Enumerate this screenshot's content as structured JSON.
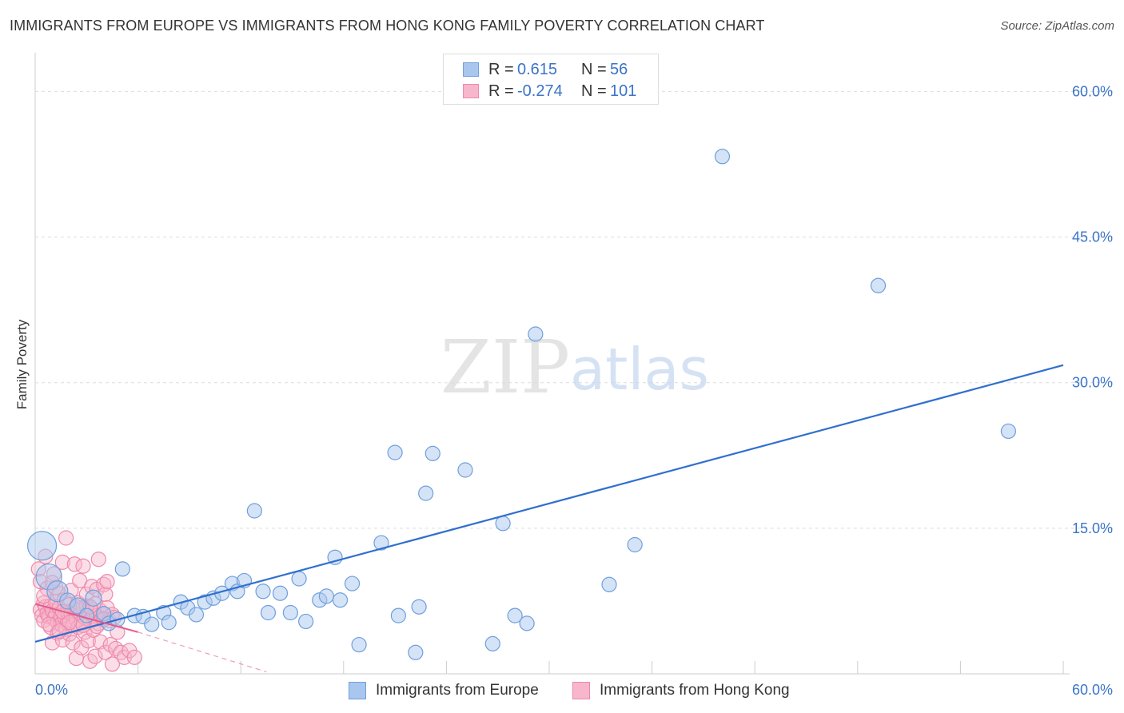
{
  "header": {
    "title": "IMMIGRANTS FROM EUROPE VS IMMIGRANTS FROM HONG KONG FAMILY POVERTY CORRELATION CHART",
    "source": "Source: ZipAtlas.com"
  },
  "watermark": {
    "zip": "ZIP",
    "atlas": "atlas"
  },
  "legend": {
    "europe": {
      "r_label": "R =",
      "r_value": "0.615",
      "n_label": "N =",
      "n_value": "56"
    },
    "hongkong": {
      "r_label": "R =",
      "r_value": "-0.274",
      "n_label": "N =",
      "n_value": "101"
    }
  },
  "bottom_legend": {
    "europe": "Immigrants from Europe",
    "hongkong": "Immigrants from Hong Kong"
  },
  "colors": {
    "europe_fill": "#a9c7ee",
    "europe_stroke": "#6f9fdc",
    "europe_line": "#2f6fcf",
    "hongkong_fill": "#f7b6cb",
    "hongkong_stroke": "#ee8aab",
    "hongkong_line": "#e45b8a",
    "tick_label": "#3b74c7",
    "grid": "#dddddd"
  },
  "chart_data": {
    "type": "scatter",
    "title": "IMMIGRANTS FROM EUROPE VS IMMIGRANTS FROM HONG KONG FAMILY POVERTY CORRELATION CHART",
    "xlabel": "",
    "ylabel": "Family Poverty",
    "xlim": [
      0,
      60
    ],
    "ylim": [
      0,
      63
    ],
    "x_tick_labels": [
      "0.0%",
      "60.0%"
    ],
    "y_ticks": [
      15,
      30,
      45,
      60
    ],
    "y_tick_labels": [
      "15.0%",
      "30.0%",
      "45.0%",
      "60.0%"
    ],
    "grid": true,
    "legend_position": "top-center",
    "series": [
      {
        "name": "Immigrants from Europe",
        "R": 0.615,
        "N": 56,
        "trend": {
          "x": [
            0,
            60
          ],
          "y": [
            3.3,
            31.8
          ],
          "style": "solid"
        },
        "points": [
          {
            "x": 0.4,
            "y": 13.2,
            "s": 18
          },
          {
            "x": 0.8,
            "y": 10.0,
            "s": 16
          },
          {
            "x": 1.3,
            "y": 8.5,
            "s": 13
          },
          {
            "x": 1.9,
            "y": 7.5,
            "s": 10
          },
          {
            "x": 2.5,
            "y": 7.0,
            "s": 10
          },
          {
            "x": 3.4,
            "y": 7.8,
            "s": 10
          },
          {
            "x": 3.0,
            "y": 6.0,
            "s": 9
          },
          {
            "x": 4.0,
            "y": 6.2,
            "s": 9
          },
          {
            "x": 4.3,
            "y": 5.2,
            "s": 9
          },
          {
            "x": 4.8,
            "y": 5.6,
            "s": 9
          },
          {
            "x": 5.1,
            "y": 10.8,
            "s": 9
          },
          {
            "x": 5.8,
            "y": 6.0,
            "s": 9
          },
          {
            "x": 6.3,
            "y": 5.9,
            "s": 9
          },
          {
            "x": 6.8,
            "y": 5.1,
            "s": 9
          },
          {
            "x": 7.5,
            "y": 6.3,
            "s": 9
          },
          {
            "x": 7.8,
            "y": 5.3,
            "s": 9
          },
          {
            "x": 8.5,
            "y": 7.4,
            "s": 9
          },
          {
            "x": 8.9,
            "y": 6.8,
            "s": 9
          },
          {
            "x": 9.4,
            "y": 6.1,
            "s": 9
          },
          {
            "x": 9.9,
            "y": 7.4,
            "s": 9
          },
          {
            "x": 10.4,
            "y": 7.8,
            "s": 9
          },
          {
            "x": 10.9,
            "y": 8.3,
            "s": 9
          },
          {
            "x": 11.5,
            "y": 9.3,
            "s": 9
          },
          {
            "x": 11.8,
            "y": 8.5,
            "s": 9
          },
          {
            "x": 12.2,
            "y": 9.6,
            "s": 9
          },
          {
            "x": 12.8,
            "y": 16.8,
            "s": 9
          },
          {
            "x": 13.3,
            "y": 8.5,
            "s": 9
          },
          {
            "x": 13.6,
            "y": 6.3,
            "s": 9
          },
          {
            "x": 14.3,
            "y": 8.3,
            "s": 9
          },
          {
            "x": 14.9,
            "y": 6.3,
            "s": 9
          },
          {
            "x": 15.4,
            "y": 9.8,
            "s": 9
          },
          {
            "x": 15.8,
            "y": 5.4,
            "s": 9
          },
          {
            "x": 16.6,
            "y": 7.6,
            "s": 9
          },
          {
            "x": 17.0,
            "y": 8.0,
            "s": 9
          },
          {
            "x": 17.5,
            "y": 12.0,
            "s": 9
          },
          {
            "x": 17.8,
            "y": 7.6,
            "s": 9
          },
          {
            "x": 18.5,
            "y": 9.3,
            "s": 9
          },
          {
            "x": 18.9,
            "y": 3.0,
            "s": 9
          },
          {
            "x": 20.2,
            "y": 13.5,
            "s": 9
          },
          {
            "x": 21.0,
            "y": 22.8,
            "s": 9
          },
          {
            "x": 21.2,
            "y": 6.0,
            "s": 9
          },
          {
            "x": 22.2,
            "y": 2.2,
            "s": 9
          },
          {
            "x": 22.4,
            "y": 6.9,
            "s": 9
          },
          {
            "x": 22.8,
            "y": 18.6,
            "s": 9
          },
          {
            "x": 23.2,
            "y": 22.7,
            "s": 9
          },
          {
            "x": 25.1,
            "y": 21.0,
            "s": 9
          },
          {
            "x": 26.7,
            "y": 3.1,
            "s": 9
          },
          {
            "x": 27.3,
            "y": 15.5,
            "s": 9
          },
          {
            "x": 28.0,
            "y": 6.0,
            "s": 9
          },
          {
            "x": 28.7,
            "y": 5.2,
            "s": 9
          },
          {
            "x": 29.2,
            "y": 35.0,
            "s": 9
          },
          {
            "x": 33.5,
            "y": 9.2,
            "s": 9
          },
          {
            "x": 35.0,
            "y": 13.3,
            "s": 9
          },
          {
            "x": 40.1,
            "y": 53.3,
            "s": 9
          },
          {
            "x": 49.2,
            "y": 40.0,
            "s": 9
          },
          {
            "x": 56.8,
            "y": 25.0,
            "s": 9
          }
        ]
      },
      {
        "name": "Immigrants from Hong Kong",
        "R": -0.274,
        "N": 101,
        "trend": {
          "x": [
            0,
            6
          ],
          "y": [
            7.2,
            4.3
          ],
          "style": "solid",
          "extension": {
            "x": [
              6,
              13.5
            ],
            "y": [
              4.3,
              0.2
            ],
            "style": "dashed"
          }
        },
        "points": [
          {
            "x": 0.2,
            "y": 10.8,
            "s": 9
          },
          {
            "x": 0.3,
            "y": 9.5,
            "s": 9
          },
          {
            "x": 0.3,
            "y": 6.6,
            "s": 9
          },
          {
            "x": 0.4,
            "y": 6.0,
            "s": 9
          },
          {
            "x": 0.5,
            "y": 7.3,
            "s": 9
          },
          {
            "x": 0.5,
            "y": 5.5,
            "s": 9
          },
          {
            "x": 0.6,
            "y": 12.1,
            "s": 9
          },
          {
            "x": 0.6,
            "y": 6.9,
            "s": 9
          },
          {
            "x": 0.7,
            "y": 8.8,
            "s": 9
          },
          {
            "x": 0.7,
            "y": 6.2,
            "s": 9
          },
          {
            "x": 0.8,
            "y": 5.9,
            "s": 9
          },
          {
            "x": 0.9,
            "y": 7.0,
            "s": 9
          },
          {
            "x": 0.9,
            "y": 4.8,
            "s": 9
          },
          {
            "x": 1.0,
            "y": 6.5,
            "s": 9
          },
          {
            "x": 1.0,
            "y": 3.2,
            "s": 9
          },
          {
            "x": 1.1,
            "y": 10.3,
            "s": 9
          },
          {
            "x": 1.1,
            "y": 5.7,
            "s": 9
          },
          {
            "x": 1.2,
            "y": 7.4,
            "s": 9
          },
          {
            "x": 1.2,
            "y": 6.1,
            "s": 9
          },
          {
            "x": 1.3,
            "y": 5.3,
            "s": 9
          },
          {
            "x": 1.3,
            "y": 4.2,
            "s": 9
          },
          {
            "x": 1.4,
            "y": 8.3,
            "s": 9
          },
          {
            "x": 1.4,
            "y": 6.8,
            "s": 9
          },
          {
            "x": 1.5,
            "y": 6.0,
            "s": 9
          },
          {
            "x": 1.5,
            "y": 5.1,
            "s": 9
          },
          {
            "x": 1.6,
            "y": 3.5,
            "s": 9
          },
          {
            "x": 1.6,
            "y": 11.5,
            "s": 9
          },
          {
            "x": 1.7,
            "y": 7.6,
            "s": 9
          },
          {
            "x": 1.7,
            "y": 5.9,
            "s": 9
          },
          {
            "x": 1.8,
            "y": 4.6,
            "s": 9
          },
          {
            "x": 1.8,
            "y": 14.0,
            "s": 9
          },
          {
            "x": 1.9,
            "y": 6.4,
            "s": 9
          },
          {
            "x": 1.9,
            "y": 5.4,
            "s": 9
          },
          {
            "x": 2.0,
            "y": 7.1,
            "s": 9
          },
          {
            "x": 2.0,
            "y": 4.1,
            "s": 9
          },
          {
            "x": 2.1,
            "y": 6.2,
            "s": 9
          },
          {
            "x": 2.1,
            "y": 8.6,
            "s": 9
          },
          {
            "x": 2.2,
            "y": 5.0,
            "s": 9
          },
          {
            "x": 2.2,
            "y": 3.2,
            "s": 9
          },
          {
            "x": 2.3,
            "y": 6.7,
            "s": 9
          },
          {
            "x": 2.3,
            "y": 11.3,
            "s": 9
          },
          {
            "x": 2.4,
            "y": 5.6,
            "s": 9
          },
          {
            "x": 2.4,
            "y": 1.6,
            "s": 9
          },
          {
            "x": 2.5,
            "y": 7.3,
            "s": 9
          },
          {
            "x": 2.5,
            "y": 4.8,
            "s": 9
          },
          {
            "x": 2.6,
            "y": 6.1,
            "s": 9
          },
          {
            "x": 2.6,
            "y": 9.6,
            "s": 9
          },
          {
            "x": 2.7,
            "y": 5.3,
            "s": 9
          },
          {
            "x": 2.7,
            "y": 2.7,
            "s": 9
          },
          {
            "x": 2.8,
            "y": 6.8,
            "s": 9
          },
          {
            "x": 2.8,
            "y": 11.1,
            "s": 9
          },
          {
            "x": 2.9,
            "y": 5.8,
            "s": 9
          },
          {
            "x": 2.9,
            "y": 4.3,
            "s": 9
          },
          {
            "x": 3.0,
            "y": 7.0,
            "s": 9
          },
          {
            "x": 3.0,
            "y": 8.2,
            "s": 9
          },
          {
            "x": 3.1,
            "y": 6.3,
            "s": 9
          },
          {
            "x": 3.1,
            "y": 3.4,
            "s": 9
          },
          {
            "x": 3.2,
            "y": 5.5,
            "s": 9
          },
          {
            "x": 3.2,
            "y": 1.3,
            "s": 9
          },
          {
            "x": 3.3,
            "y": 6.6,
            "s": 9
          },
          {
            "x": 3.3,
            "y": 9.0,
            "s": 9
          },
          {
            "x": 3.4,
            "y": 5.9,
            "s": 9
          },
          {
            "x": 3.4,
            "y": 4.5,
            "s": 9
          },
          {
            "x": 3.5,
            "y": 7.2,
            "s": 9
          },
          {
            "x": 3.5,
            "y": 1.8,
            "s": 9
          },
          {
            "x": 3.6,
            "y": 6.0,
            "s": 9
          },
          {
            "x": 3.6,
            "y": 8.7,
            "s": 9
          },
          {
            "x": 3.7,
            "y": 5.2,
            "s": 9
          },
          {
            "x": 3.7,
            "y": 11.8,
            "s": 9
          },
          {
            "x": 3.8,
            "y": 6.5,
            "s": 9
          },
          {
            "x": 3.8,
            "y": 3.3,
            "s": 9
          },
          {
            "x": 3.9,
            "y": 5.7,
            "s": 9
          },
          {
            "x": 4.0,
            "y": 9.2,
            "s": 9
          },
          {
            "x": 4.0,
            "y": 6.2,
            "s": 9
          },
          {
            "x": 4.1,
            "y": 8.2,
            "s": 9
          },
          {
            "x": 4.1,
            "y": 2.2,
            "s": 9
          },
          {
            "x": 4.2,
            "y": 6.8,
            "s": 9
          },
          {
            "x": 4.2,
            "y": 9.5,
            "s": 9
          },
          {
            "x": 4.3,
            "y": 5.5,
            "s": 9
          },
          {
            "x": 4.4,
            "y": 3.0,
            "s": 9
          },
          {
            "x": 4.5,
            "y": 6.1,
            "s": 9
          },
          {
            "x": 4.5,
            "y": 1.0,
            "s": 9
          },
          {
            "x": 4.6,
            "y": 5.8,
            "s": 9
          },
          {
            "x": 4.7,
            "y": 2.6,
            "s": 9
          },
          {
            "x": 4.8,
            "y": 4.3,
            "s": 9
          },
          {
            "x": 5.0,
            "y": 2.2,
            "s": 9
          },
          {
            "x": 5.2,
            "y": 1.7,
            "s": 9
          },
          {
            "x": 5.5,
            "y": 2.4,
            "s": 9
          },
          {
            "x": 5.8,
            "y": 1.7,
            "s": 9
          },
          {
            "x": 0.8,
            "y": 5.1,
            "s": 9
          },
          {
            "x": 1.2,
            "y": 8.9,
            "s": 9
          },
          {
            "x": 1.6,
            "y": 6.4,
            "s": 9
          },
          {
            "x": 2.0,
            "y": 5.3,
            "s": 9
          },
          {
            "x": 2.4,
            "y": 6.9,
            "s": 9
          },
          {
            "x": 2.8,
            "y": 5.0,
            "s": 9
          },
          {
            "x": 3.2,
            "y": 6.9,
            "s": 9
          },
          {
            "x": 3.6,
            "y": 4.9,
            "s": 9
          },
          {
            "x": 4.0,
            "y": 5.6,
            "s": 9
          },
          {
            "x": 0.5,
            "y": 8.0,
            "s": 9
          },
          {
            "x": 1.0,
            "y": 9.4,
            "s": 9
          },
          {
            "x": 1.4,
            "y": 4.4,
            "s": 9
          }
        ]
      }
    ]
  }
}
